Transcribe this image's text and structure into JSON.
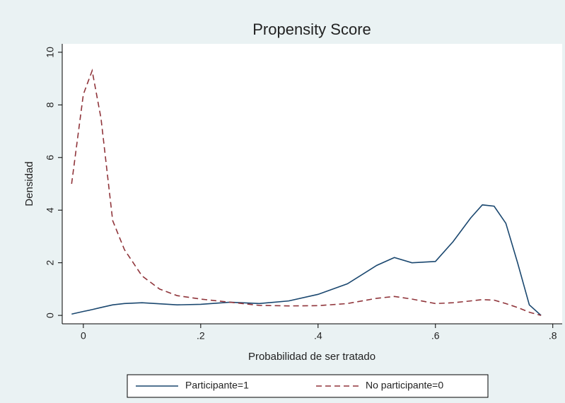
{
  "chart_data": {
    "type": "line",
    "title": "Propensity Score",
    "x_label": "Probabilidad de ser tratado",
    "y_label": "Densidad",
    "x": [
      -0.02,
      0,
      0.015,
      0.03,
      0.05,
      0.07,
      0.1,
      0.13,
      0.16,
      0.2,
      0.25,
      0.3,
      0.35,
      0.4,
      0.45,
      0.5,
      0.53,
      0.56,
      0.6,
      0.63,
      0.66,
      0.68,
      0.7,
      0.72,
      0.74,
      0.76,
      0.78
    ],
    "series": [
      {
        "name": "Participante=1",
        "color": "#1a476f",
        "style": "solid",
        "values": [
          0.05,
          0.15,
          0.22,
          0.3,
          0.4,
          0.45,
          0.48,
          0.44,
          0.4,
          0.42,
          0.5,
          0.45,
          0.55,
          0.8,
          1.2,
          1.9,
          2.2,
          2.0,
          2.05,
          2.8,
          3.7,
          4.2,
          4.15,
          3.5,
          2.0,
          0.4,
          0.0
        ]
      },
      {
        "name": "No participante=0",
        "color": "#90353b",
        "style": "dashed",
        "values": [
          5.0,
          8.4,
          9.3,
          7.5,
          3.6,
          2.5,
          1.5,
          1.0,
          0.75,
          0.62,
          0.5,
          0.38,
          0.36,
          0.37,
          0.45,
          0.65,
          0.72,
          0.62,
          0.45,
          0.48,
          0.55,
          0.6,
          0.58,
          0.45,
          0.3,
          0.12,
          0.0
        ]
      }
    ],
    "xlim": [
      -0.036,
      0.816
    ],
    "ylim": [
      -0.32,
      10.32
    ],
    "xticks": [
      {
        "value": 0,
        "label": "0"
      },
      {
        "value": 0.2,
        "label": ".2"
      },
      {
        "value": 0.4,
        "label": ".4"
      },
      {
        "value": 0.6,
        "label": ".6"
      },
      {
        "value": 0.8,
        "label": ".8"
      }
    ],
    "yticks": [
      0,
      2,
      4,
      6,
      8,
      10
    ],
    "legend": "bottom"
  }
}
